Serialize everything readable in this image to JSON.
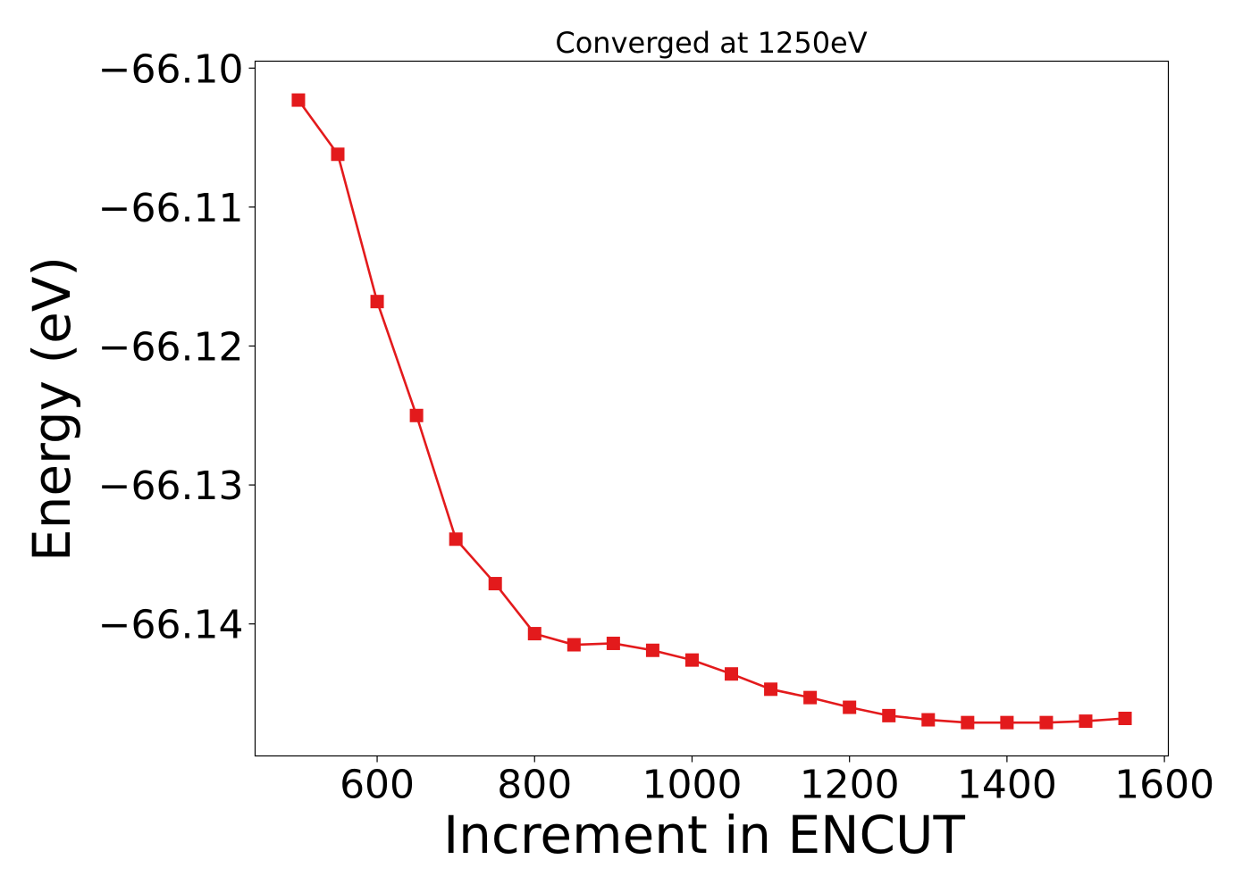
{
  "chart_data": {
    "type": "line",
    "title": "Converged at 1250eV",
    "xlabel": "Increment in ENCUT",
    "ylabel": "Energy (eV)",
    "xlim": [
      445,
      1605
    ],
    "ylim": [
      -66.1495,
      -66.0995
    ],
    "xticks": [
      600,
      800,
      1000,
      1200,
      1400,
      1600
    ],
    "xtick_labels": [
      "600",
      "800",
      "1000",
      "1200",
      "1400",
      "1600"
    ],
    "yticks": [
      -66.1,
      -66.11,
      -66.12,
      -66.13,
      -66.14
    ],
    "ytick_labels": [
      "−66.10",
      "−66.11",
      "−66.12",
      "−66.13",
      "−66.14"
    ],
    "grid": false,
    "series": [
      {
        "color": "#e31a1c",
        "marker": "square",
        "x": [
          500,
          550,
          600,
          650,
          700,
          750,
          800,
          850,
          900,
          950,
          1000,
          1050,
          1100,
          1150,
          1200,
          1250,
          1300,
          1350,
          1400,
          1450,
          1500,
          1550
        ],
        "y": [
          -66.1023,
          -66.1062,
          -66.1168,
          -66.125,
          -66.1339,
          -66.1371,
          -66.1407,
          -66.1415,
          -66.1414,
          -66.1419,
          -66.1426,
          -66.1436,
          -66.1447,
          -66.1453,
          -66.146,
          -66.1466,
          -66.1469,
          -66.1471,
          -66.1471,
          -66.1471,
          -66.147,
          -66.1468
        ]
      }
    ]
  }
}
